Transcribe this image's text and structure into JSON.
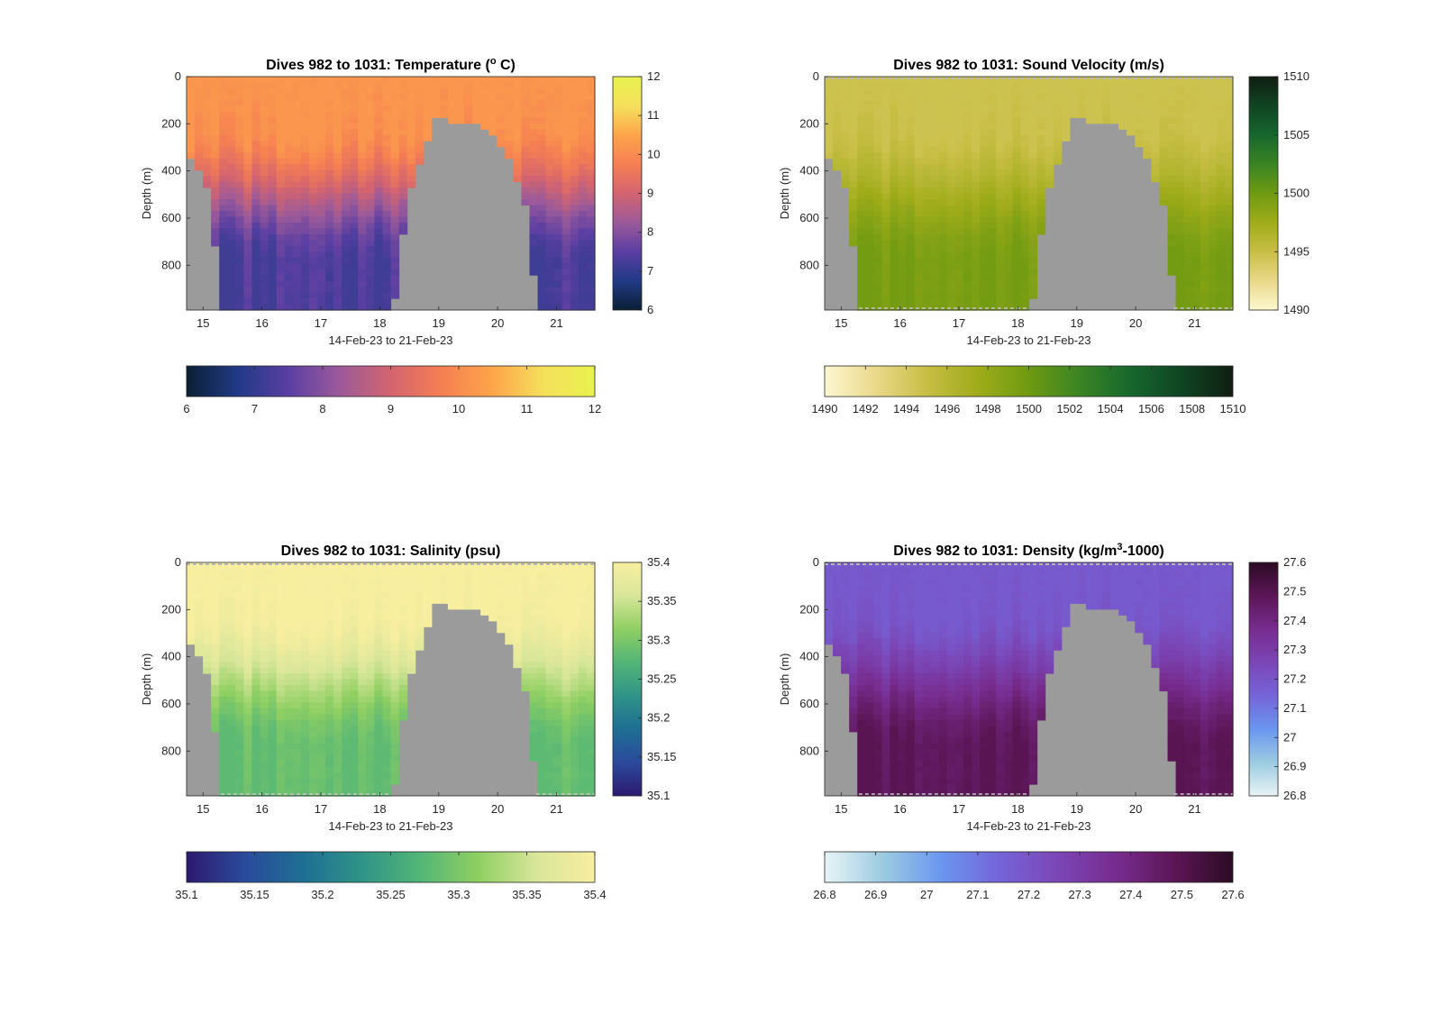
{
  "figure": {
    "background": "#ffffff",
    "terrain_color": "#9b9b9b"
  },
  "chart_data": [
    {
      "type": "heatmap",
      "title_parts": [
        "Dives 982 to 1031: Temperature (",
        "o",
        " C)"
      ],
      "title_sup_index": 1,
      "xlabel": "14-Feb-23 to 21-Feb-23",
      "ylabel": "Depth (m)",
      "x_ticks": [
        "15",
        "16",
        "17",
        "18",
        "19",
        "20",
        "21"
      ],
      "x_range": [
        14.72,
        21.65
      ],
      "y_ticks": [
        "0",
        "200",
        "400",
        "600",
        "800"
      ],
      "y_range": [
        0,
        990
      ],
      "y_reversed": true,
      "cbar_ticks_vertical": [
        "12",
        "11",
        "10",
        "9",
        "8",
        "7",
        "6"
      ],
      "cbar_ticks_horizontal": [
        "6",
        "7",
        "8",
        "9",
        "10",
        "11",
        "12"
      ],
      "clim": [
        6,
        12
      ],
      "colormap": [
        "#0b1f33",
        "#213a86",
        "#5a3fa2",
        "#9b5a9a",
        "#d3646f",
        "#f57f53",
        "#fda54a",
        "#f5e05c",
        "#e8f24e"
      ],
      "surface_value": 10.2,
      "deep_value": 7.3,
      "dashed_lines": false
    },
    {
      "type": "heatmap",
      "title_parts": [
        "Dives 982 to 1031: Sound Velocity (m/s)"
      ],
      "title_sup_index": -1,
      "xlabel": "14-Feb-23 to 21-Feb-23",
      "ylabel": "Depth (m)",
      "x_ticks": [
        "15",
        "16",
        "17",
        "18",
        "19",
        "20",
        "21"
      ],
      "x_range": [
        14.72,
        21.65
      ],
      "y_ticks": [
        "0",
        "200",
        "400",
        "600",
        "800"
      ],
      "y_range": [
        0,
        990
      ],
      "y_reversed": true,
      "cbar_ticks_vertical": [
        "1510",
        "1505",
        "1500",
        "1495",
        "1490"
      ],
      "cbar_ticks_horizontal": [
        "1490",
        "1492",
        "1494",
        "1496",
        "1498",
        "1500",
        "1502",
        "1504",
        "1506",
        "1508",
        "1510"
      ],
      "clim": [
        1490,
        1510
      ],
      "colormap": [
        "#fdf7d0",
        "#e9d98a",
        "#c7be45",
        "#9fac1a",
        "#6f9a12",
        "#3a8424",
        "#17672e",
        "#0f4422",
        "#111e12"
      ],
      "surface_value": 1494.6,
      "deep_value": 1499.5,
      "dashed_lines": true
    },
    {
      "type": "heatmap",
      "title_parts": [
        "Dives 982 to 1031: Salinity (psu)"
      ],
      "title_sup_index": -1,
      "xlabel": "14-Feb-23 to 21-Feb-23",
      "ylabel": "Depth (m)",
      "x_ticks": [
        "15",
        "16",
        "17",
        "18",
        "19",
        "20",
        "21"
      ],
      "x_range": [
        14.72,
        21.65
      ],
      "y_ticks": [
        "0",
        "200",
        "400",
        "600",
        "800"
      ],
      "y_range": [
        0,
        990
      ],
      "y_reversed": true,
      "cbar_ticks_vertical": [
        "35.4",
        "35.35",
        "35.3",
        "35.25",
        "35.2",
        "35.15",
        "35.1"
      ],
      "cbar_ticks_horizontal": [
        "35.1",
        "35.15",
        "35.2",
        "35.25",
        "35.3",
        "35.35",
        "35.4"
      ],
      "clim": [
        35.1,
        35.4
      ],
      "colormap": [
        "#2c1a6e",
        "#2b4a9b",
        "#1e6f93",
        "#2f9487",
        "#52b577",
        "#8fcf62",
        "#d8e69a",
        "#f8ee9f"
      ],
      "surface_value": 35.4,
      "deep_value": 35.285,
      "dashed_lines": true
    },
    {
      "type": "heatmap",
      "title_parts": [
        "Dives 982 to 1031: Density (kg/m",
        "3",
        "-1000)"
      ],
      "title_sup_index": 1,
      "xlabel": "14-Feb-23 to 21-Feb-23",
      "ylabel": "Depth (m)",
      "x_ticks": [
        "15",
        "16",
        "17",
        "18",
        "19",
        "20",
        "21"
      ],
      "x_range": [
        14.72,
        21.65
      ],
      "y_ticks": [
        "0",
        "200",
        "400",
        "600",
        "800"
      ],
      "y_range": [
        0,
        990
      ],
      "y_reversed": true,
      "cbar_ticks_vertical": [
        "27.6",
        "27.5",
        "27.4",
        "27.3",
        "27.2",
        "27.1",
        "27",
        "26.9",
        "26.8"
      ],
      "cbar_ticks_horizontal": [
        "26.8",
        "26.9",
        "27",
        "27.1",
        "27.2",
        "27.3",
        "27.4",
        "27.5",
        "27.6"
      ],
      "clim": [
        26.8,
        27.6
      ],
      "colormap": [
        "#e8f4f6",
        "#9ccbe1",
        "#6a96ef",
        "#7564d8",
        "#7b46b6",
        "#772c8e",
        "#5c1656",
        "#2b0b24"
      ],
      "surface_value": 27.18,
      "deep_value": 27.48,
      "dashed_lines": true
    }
  ]
}
